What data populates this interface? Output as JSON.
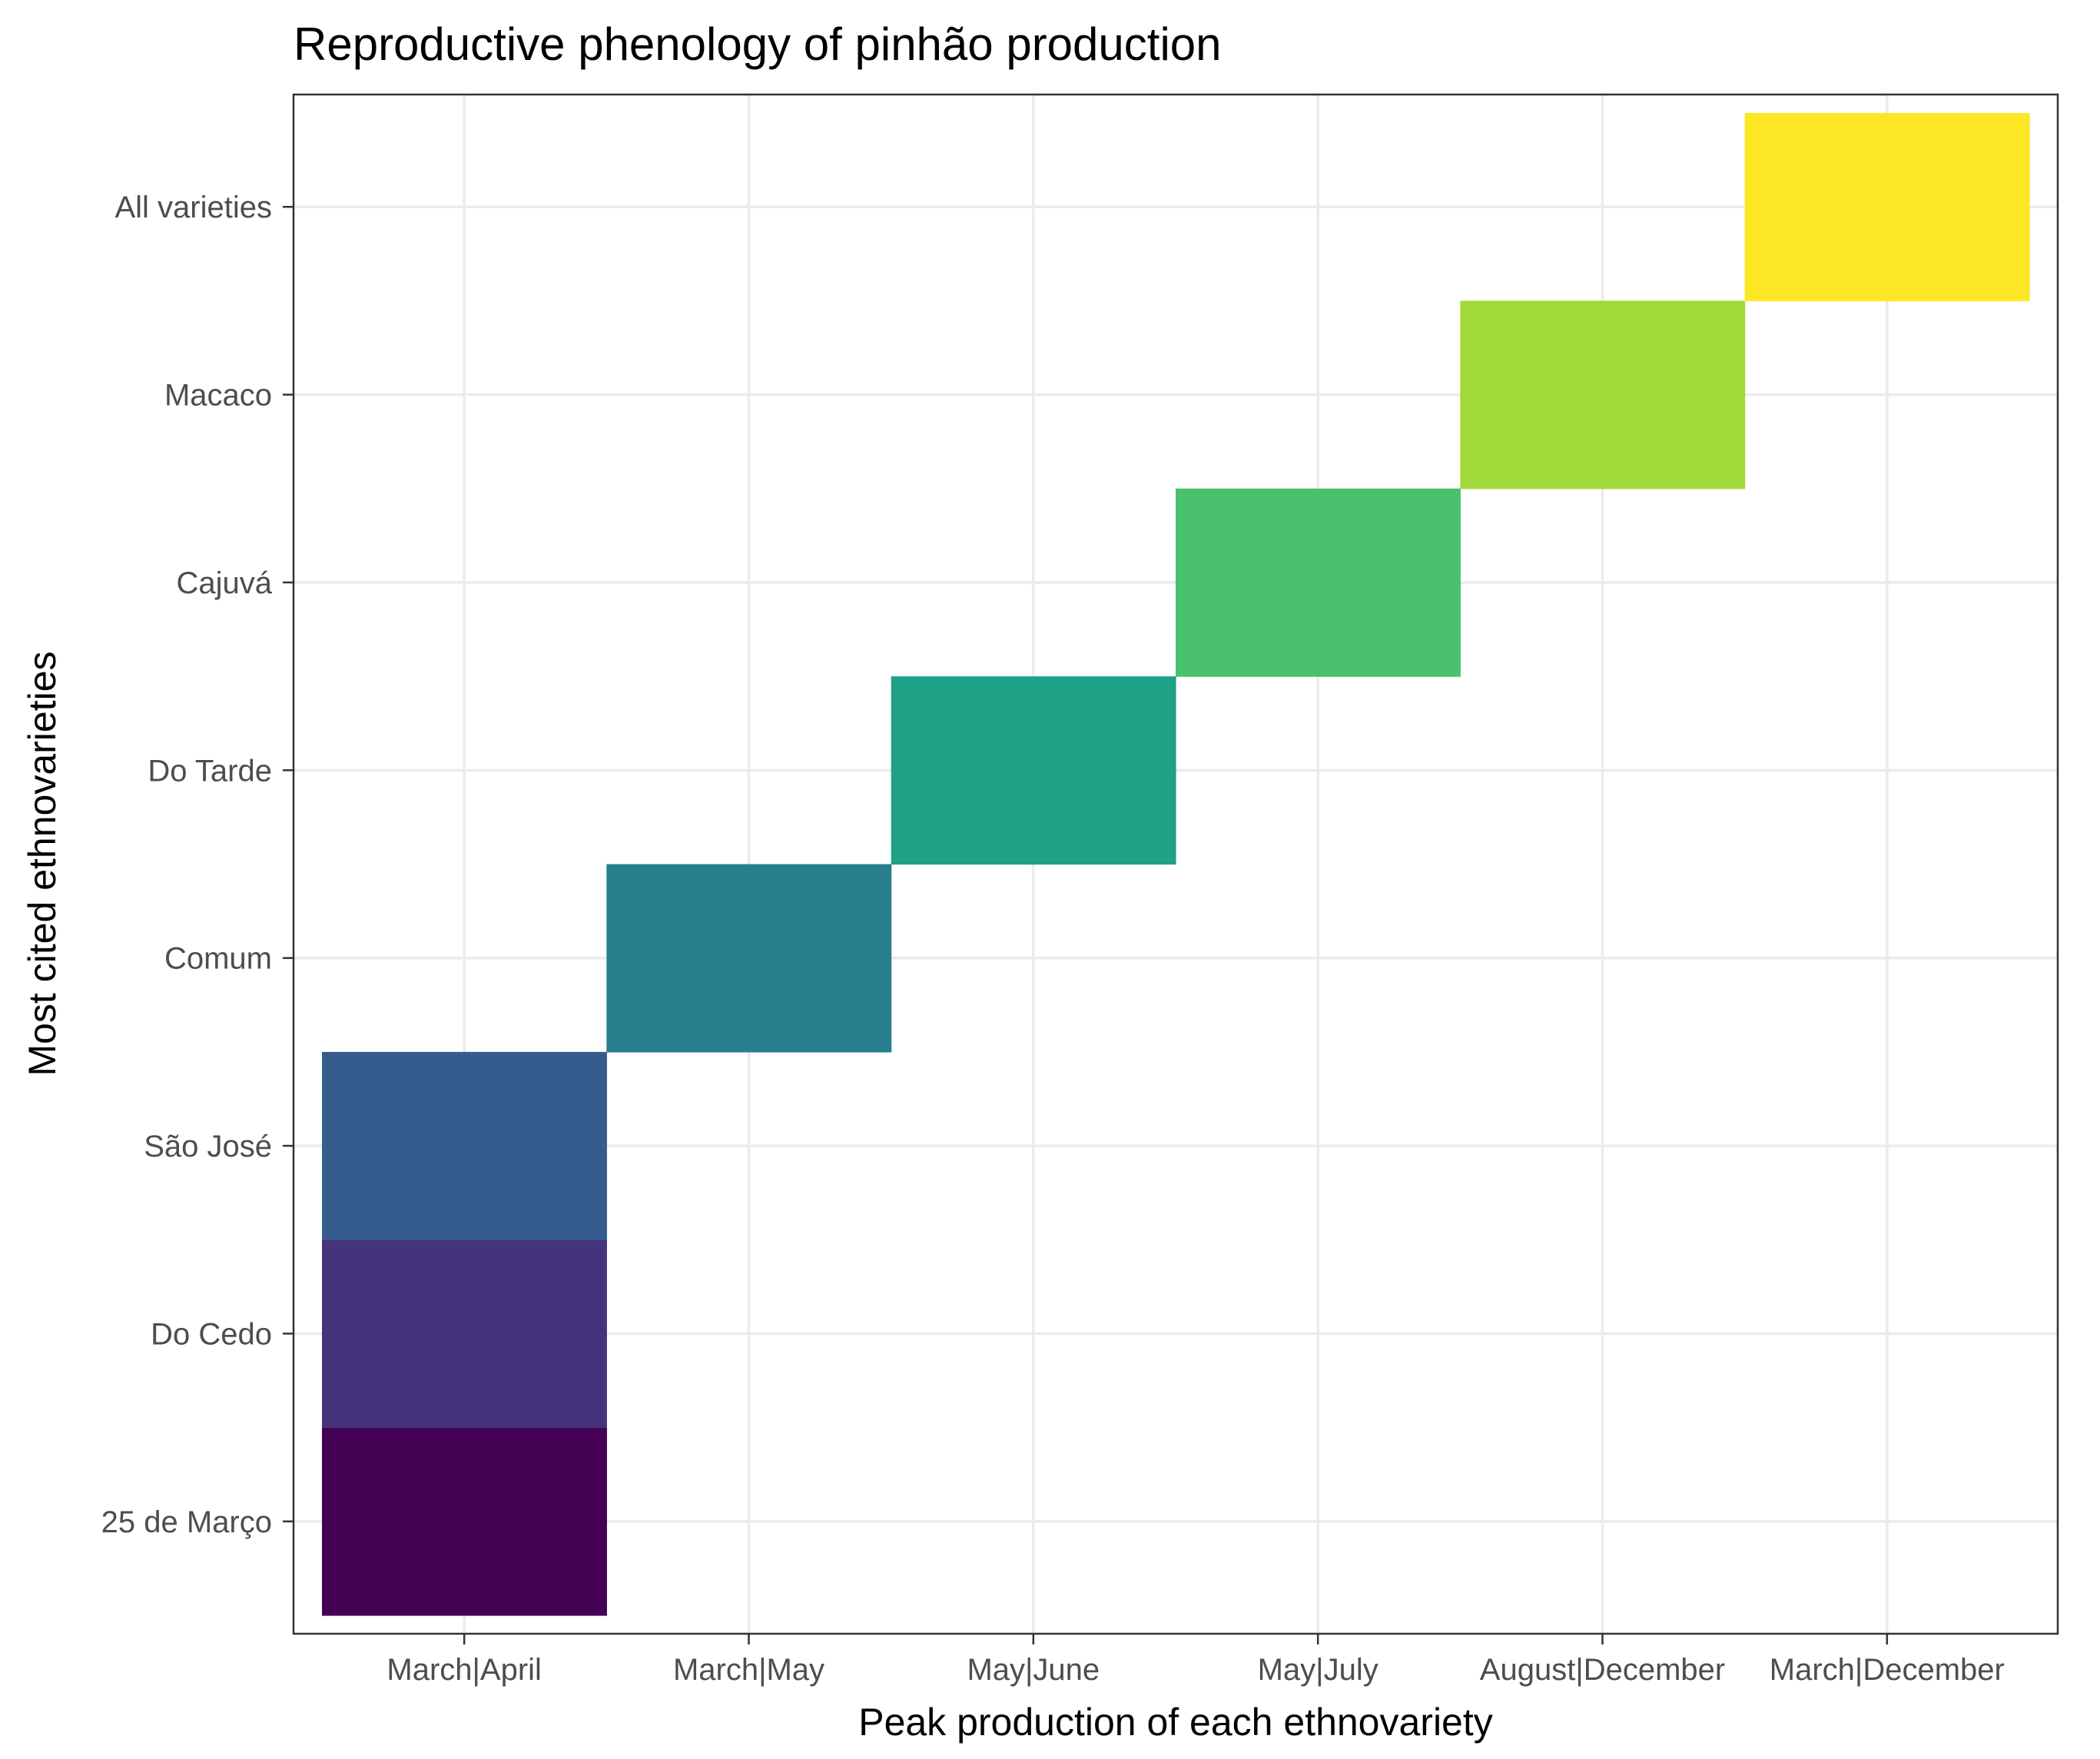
{
  "chart_data": {
    "type": "heatmap",
    "title": "Reproductive phenology of pinhão production",
    "xlabel": "Peak production of each ethnovariety",
    "ylabel": "Most cited ethnovarieties",
    "x_categories": [
      "March|April",
      "March|May",
      "May|June",
      "May|July",
      "August|December",
      "March|December"
    ],
    "y_categories": [
      "25 de Março",
      "Do Cedo",
      "São José",
      "Comum",
      "Do Tarde",
      "Cajuvá",
      "Macaco",
      "All varieties"
    ],
    "cells": [
      {
        "y": "25 de Março",
        "x": "March|April",
        "color": "#440154"
      },
      {
        "y": "Do Cedo",
        "x": "March|April",
        "color": "#46337E"
      },
      {
        "y": "São José",
        "x": "March|April",
        "color": "#365C8D"
      },
      {
        "y": "Comum",
        "x": "March|May",
        "color": "#277F8E"
      },
      {
        "y": "Do Tarde",
        "x": "May|June",
        "color": "#1FA187"
      },
      {
        "y": "Cajuvá",
        "x": "May|July",
        "color": "#4AC16D"
      },
      {
        "y": "Macaco",
        "x": "August|December",
        "color": "#A0DA39"
      },
      {
        "y": "All varieties",
        "x": "March|December",
        "color": "#FDE725"
      }
    ],
    "grid": true,
    "legend": "none"
  }
}
